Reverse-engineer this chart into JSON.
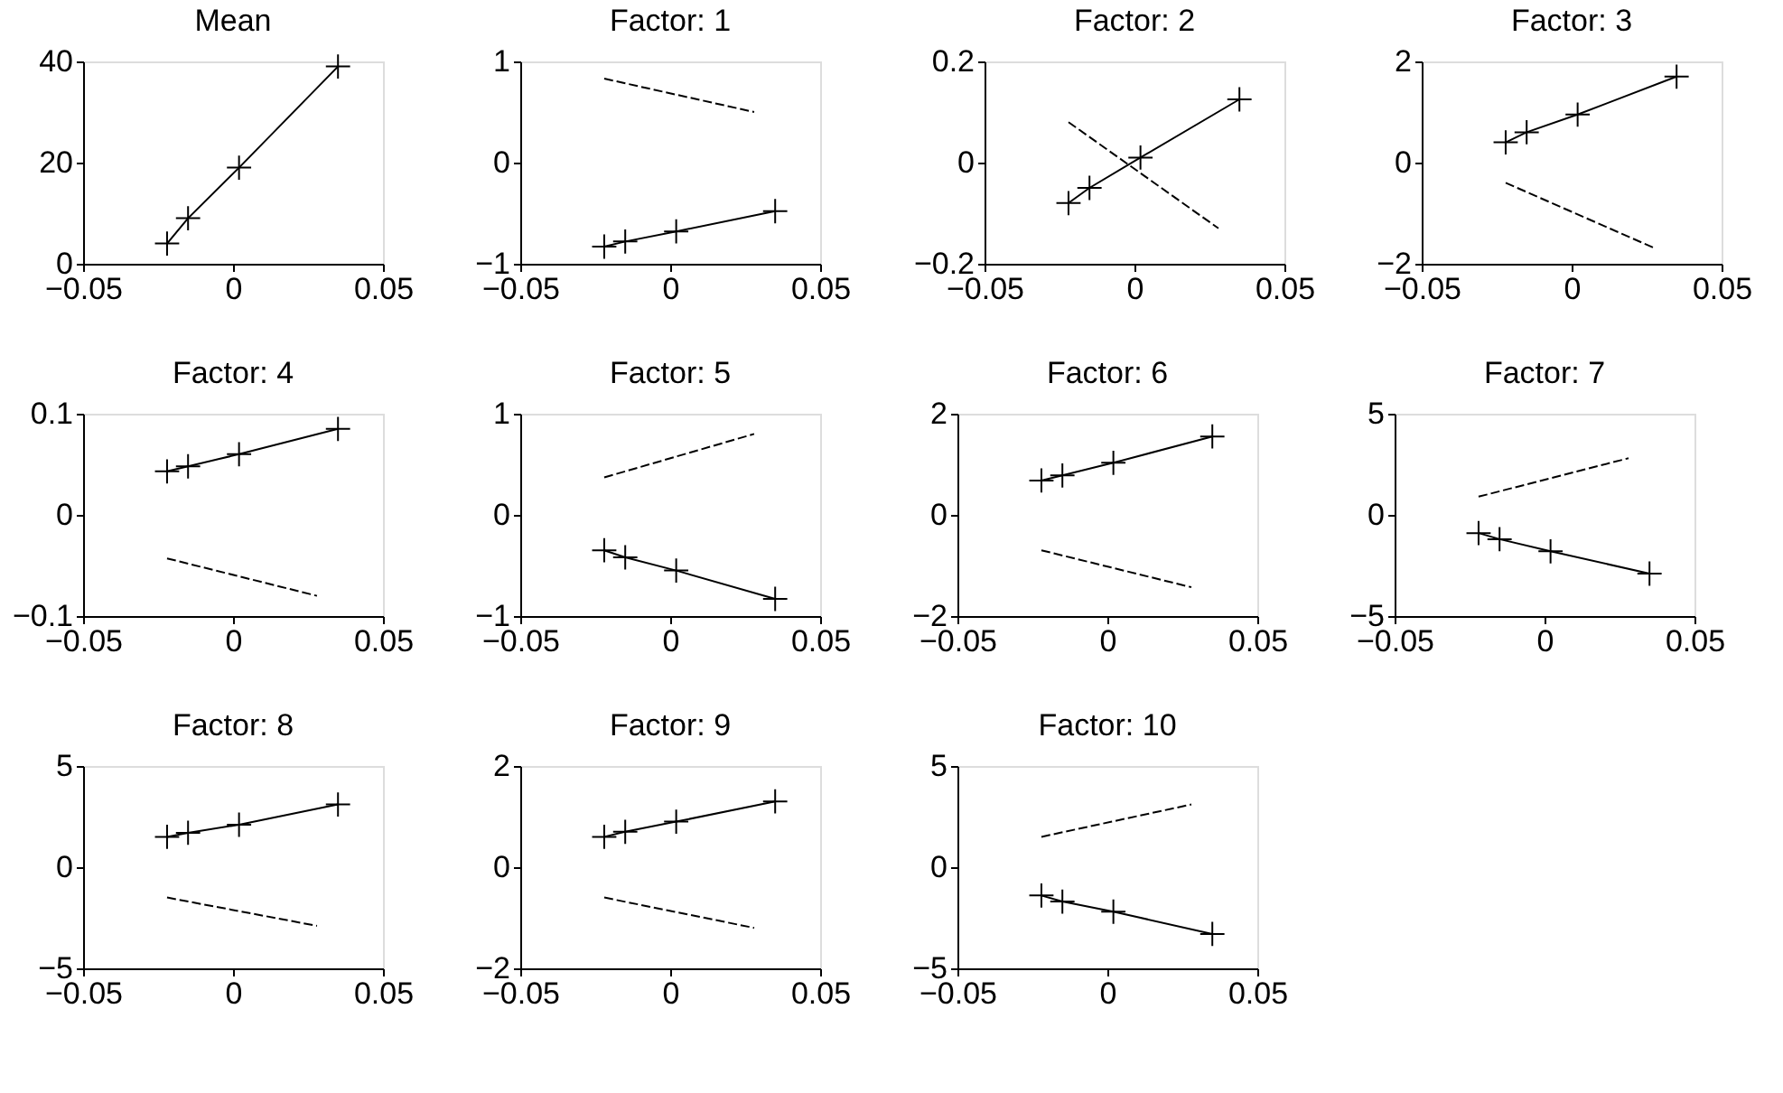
{
  "chart_data": [
    {
      "type": "line",
      "title": "Mean",
      "xlim": [
        -0.05,
        0.05
      ],
      "xticks": [
        -0.05,
        0,
        0.05
      ],
      "ylim": [
        0,
        40
      ],
      "yticks": [
        0,
        20,
        40
      ],
      "grid": false,
      "series": [
        {
          "color": "#000000",
          "x": [
            -0.022,
            -0.015,
            0.002,
            0.035
          ],
          "values": [
            4,
            9,
            19,
            39
          ],
          "marker": "cross",
          "line_style": "solid"
        }
      ]
    },
    {
      "type": "line",
      "title": "Factor: 1",
      "xlim": [
        -0.05,
        0.05
      ],
      "xticks": [
        -0.05,
        0,
        0.05
      ],
      "ylim": [
        -1,
        1
      ],
      "yticks": [
        -1,
        0,
        1
      ],
      "grid": false,
      "series": [
        {
          "color": "#000000",
          "x": [
            -0.022,
            -0.015,
            0.002,
            0.035
          ],
          "values": [
            -0.83,
            -0.78,
            -0.68,
            -0.48
          ],
          "marker": "cross",
          "line_style": "solid"
        },
        {
          "color": "#000000",
          "x": [
            -0.022,
            0.028
          ],
          "values": [
            0.83,
            0.5
          ],
          "marker": "none",
          "line_style": "dashed"
        }
      ]
    },
    {
      "type": "line",
      "title": "Factor: 2",
      "xlim": [
        -0.05,
        0.05
      ],
      "xticks": [
        -0.05,
        0,
        0.05
      ],
      "ylim": [
        -0.2,
        0.2
      ],
      "yticks": [
        -0.2,
        0,
        0.2
      ],
      "grid": false,
      "series": [
        {
          "color": "#000000",
          "x": [
            -0.022,
            -0.015,
            0.002,
            0.035
          ],
          "values": [
            -0.08,
            -0.05,
            0.01,
            0.125
          ],
          "marker": "cross",
          "line_style": "solid"
        },
        {
          "color": "#000000",
          "x": [
            -0.022,
            0.028
          ],
          "values": [
            0.08,
            -0.13
          ],
          "marker": "none",
          "line_style": "dashed"
        }
      ]
    },
    {
      "type": "line",
      "title": "Factor: 3",
      "xlim": [
        -0.05,
        0.05
      ],
      "xticks": [
        -0.05,
        0,
        0.05
      ],
      "ylim": [
        -2,
        2
      ],
      "yticks": [
        -2,
        0,
        2
      ],
      "grid": false,
      "series": [
        {
          "color": "#000000",
          "x": [
            -0.022,
            -0.015,
            0.002,
            0.035
          ],
          "values": [
            0.4,
            0.6,
            0.95,
            1.7
          ],
          "marker": "cross",
          "line_style": "solid"
        },
        {
          "color": "#000000",
          "x": [
            -0.022,
            0.028
          ],
          "values": [
            -0.4,
            -1.7
          ],
          "marker": "none",
          "line_style": "dashed"
        }
      ]
    },
    {
      "type": "line",
      "title": "Factor: 4",
      "xlim": [
        -0.05,
        0.05
      ],
      "xticks": [
        -0.05,
        0,
        0.05
      ],
      "ylim": [
        -0.1,
        0.1
      ],
      "yticks": [
        -0.1,
        0,
        0.1
      ],
      "grid": false,
      "series": [
        {
          "color": "#000000",
          "x": [
            -0.022,
            -0.015,
            0.002,
            0.035
          ],
          "values": [
            0.043,
            0.048,
            0.06,
            0.085
          ],
          "marker": "cross",
          "line_style": "solid"
        },
        {
          "color": "#000000",
          "x": [
            -0.022,
            0.028
          ],
          "values": [
            -0.043,
            -0.08
          ],
          "marker": "none",
          "line_style": "dashed"
        }
      ]
    },
    {
      "type": "line",
      "title": "Factor: 5",
      "xlim": [
        -0.05,
        0.05
      ],
      "xticks": [
        -0.05,
        0,
        0.05
      ],
      "ylim": [
        -1,
        1
      ],
      "yticks": [
        -1,
        0,
        1
      ],
      "grid": false,
      "series": [
        {
          "color": "#000000",
          "x": [
            -0.022,
            -0.015,
            0.002,
            0.035
          ],
          "values": [
            -0.35,
            -0.42,
            -0.55,
            -0.83
          ],
          "marker": "cross",
          "line_style": "solid"
        },
        {
          "color": "#000000",
          "x": [
            -0.022,
            0.028
          ],
          "values": [
            0.37,
            0.8
          ],
          "marker": "none",
          "line_style": "dashed"
        }
      ]
    },
    {
      "type": "line",
      "title": "Factor: 6",
      "xlim": [
        -0.05,
        0.05
      ],
      "xticks": [
        -0.05,
        0,
        0.05
      ],
      "ylim": [
        -2,
        2
      ],
      "yticks": [
        -2,
        0,
        2
      ],
      "grid": false,
      "series": [
        {
          "color": "#000000",
          "x": [
            -0.022,
            -0.015,
            0.002,
            0.035
          ],
          "values": [
            0.68,
            0.78,
            1.03,
            1.55
          ],
          "marker": "cross",
          "line_style": "solid"
        },
        {
          "color": "#000000",
          "x": [
            -0.022,
            0.028
          ],
          "values": [
            -0.7,
            -1.43
          ],
          "marker": "none",
          "line_style": "dashed"
        }
      ]
    },
    {
      "type": "line",
      "title": "Factor: 7",
      "xlim": [
        -0.05,
        0.05
      ],
      "xticks": [
        -0.05,
        0,
        0.05
      ],
      "ylim": [
        -5,
        5
      ],
      "yticks": [
        -5,
        0,
        5
      ],
      "grid": false,
      "series": [
        {
          "color": "#000000",
          "x": [
            -0.022,
            -0.015,
            0.002,
            0.035
          ],
          "values": [
            -0.9,
            -1.2,
            -1.8,
            -2.9
          ],
          "marker": "cross",
          "line_style": "solid"
        },
        {
          "color": "#000000",
          "x": [
            -0.022,
            0.028
          ],
          "values": [
            0.9,
            2.8
          ],
          "marker": "none",
          "line_style": "dashed"
        }
      ]
    },
    {
      "type": "line",
      "title": "Factor: 8",
      "xlim": [
        -0.05,
        0.05
      ],
      "xticks": [
        -0.05,
        0,
        0.05
      ],
      "ylim": [
        -5,
        5
      ],
      "yticks": [
        -5,
        0,
        5
      ],
      "grid": false,
      "series": [
        {
          "color": "#000000",
          "x": [
            -0.022,
            -0.015,
            0.002,
            0.035
          ],
          "values": [
            1.5,
            1.7,
            2.1,
            3.1
          ],
          "marker": "cross",
          "line_style": "solid"
        },
        {
          "color": "#000000",
          "x": [
            -0.022,
            0.028
          ],
          "values": [
            -1.5,
            -2.9
          ],
          "marker": "none",
          "line_style": "dashed"
        }
      ]
    },
    {
      "type": "line",
      "title": "Factor: 9",
      "xlim": [
        -0.05,
        0.05
      ],
      "xticks": [
        -0.05,
        0,
        0.05
      ],
      "ylim": [
        -2,
        2
      ],
      "yticks": [
        -2,
        0,
        2
      ],
      "grid": false,
      "series": [
        {
          "color": "#000000",
          "x": [
            -0.022,
            -0.015,
            0.002,
            0.035
          ],
          "values": [
            0.6,
            0.7,
            0.9,
            1.3
          ],
          "marker": "cross",
          "line_style": "solid"
        },
        {
          "color": "#000000",
          "x": [
            -0.022,
            0.028
          ],
          "values": [
            -0.6,
            -1.2
          ],
          "marker": "none",
          "line_style": "dashed"
        }
      ]
    },
    {
      "type": "line",
      "title": "Factor: 10",
      "xlim": [
        -0.05,
        0.05
      ],
      "xticks": [
        -0.05,
        0,
        0.05
      ],
      "ylim": [
        -5,
        5
      ],
      "yticks": [
        -5,
        0,
        5
      ],
      "grid": false,
      "series": [
        {
          "color": "#000000",
          "x": [
            -0.022,
            -0.015,
            0.002,
            0.035
          ],
          "values": [
            -1.4,
            -1.7,
            -2.2,
            -3.3
          ],
          "marker": "cross",
          "line_style": "solid"
        },
        {
          "color": "#000000",
          "x": [
            -0.022,
            0.028
          ],
          "values": [
            1.5,
            3.1
          ],
          "marker": "none",
          "line_style": "dashed"
        }
      ]
    }
  ]
}
